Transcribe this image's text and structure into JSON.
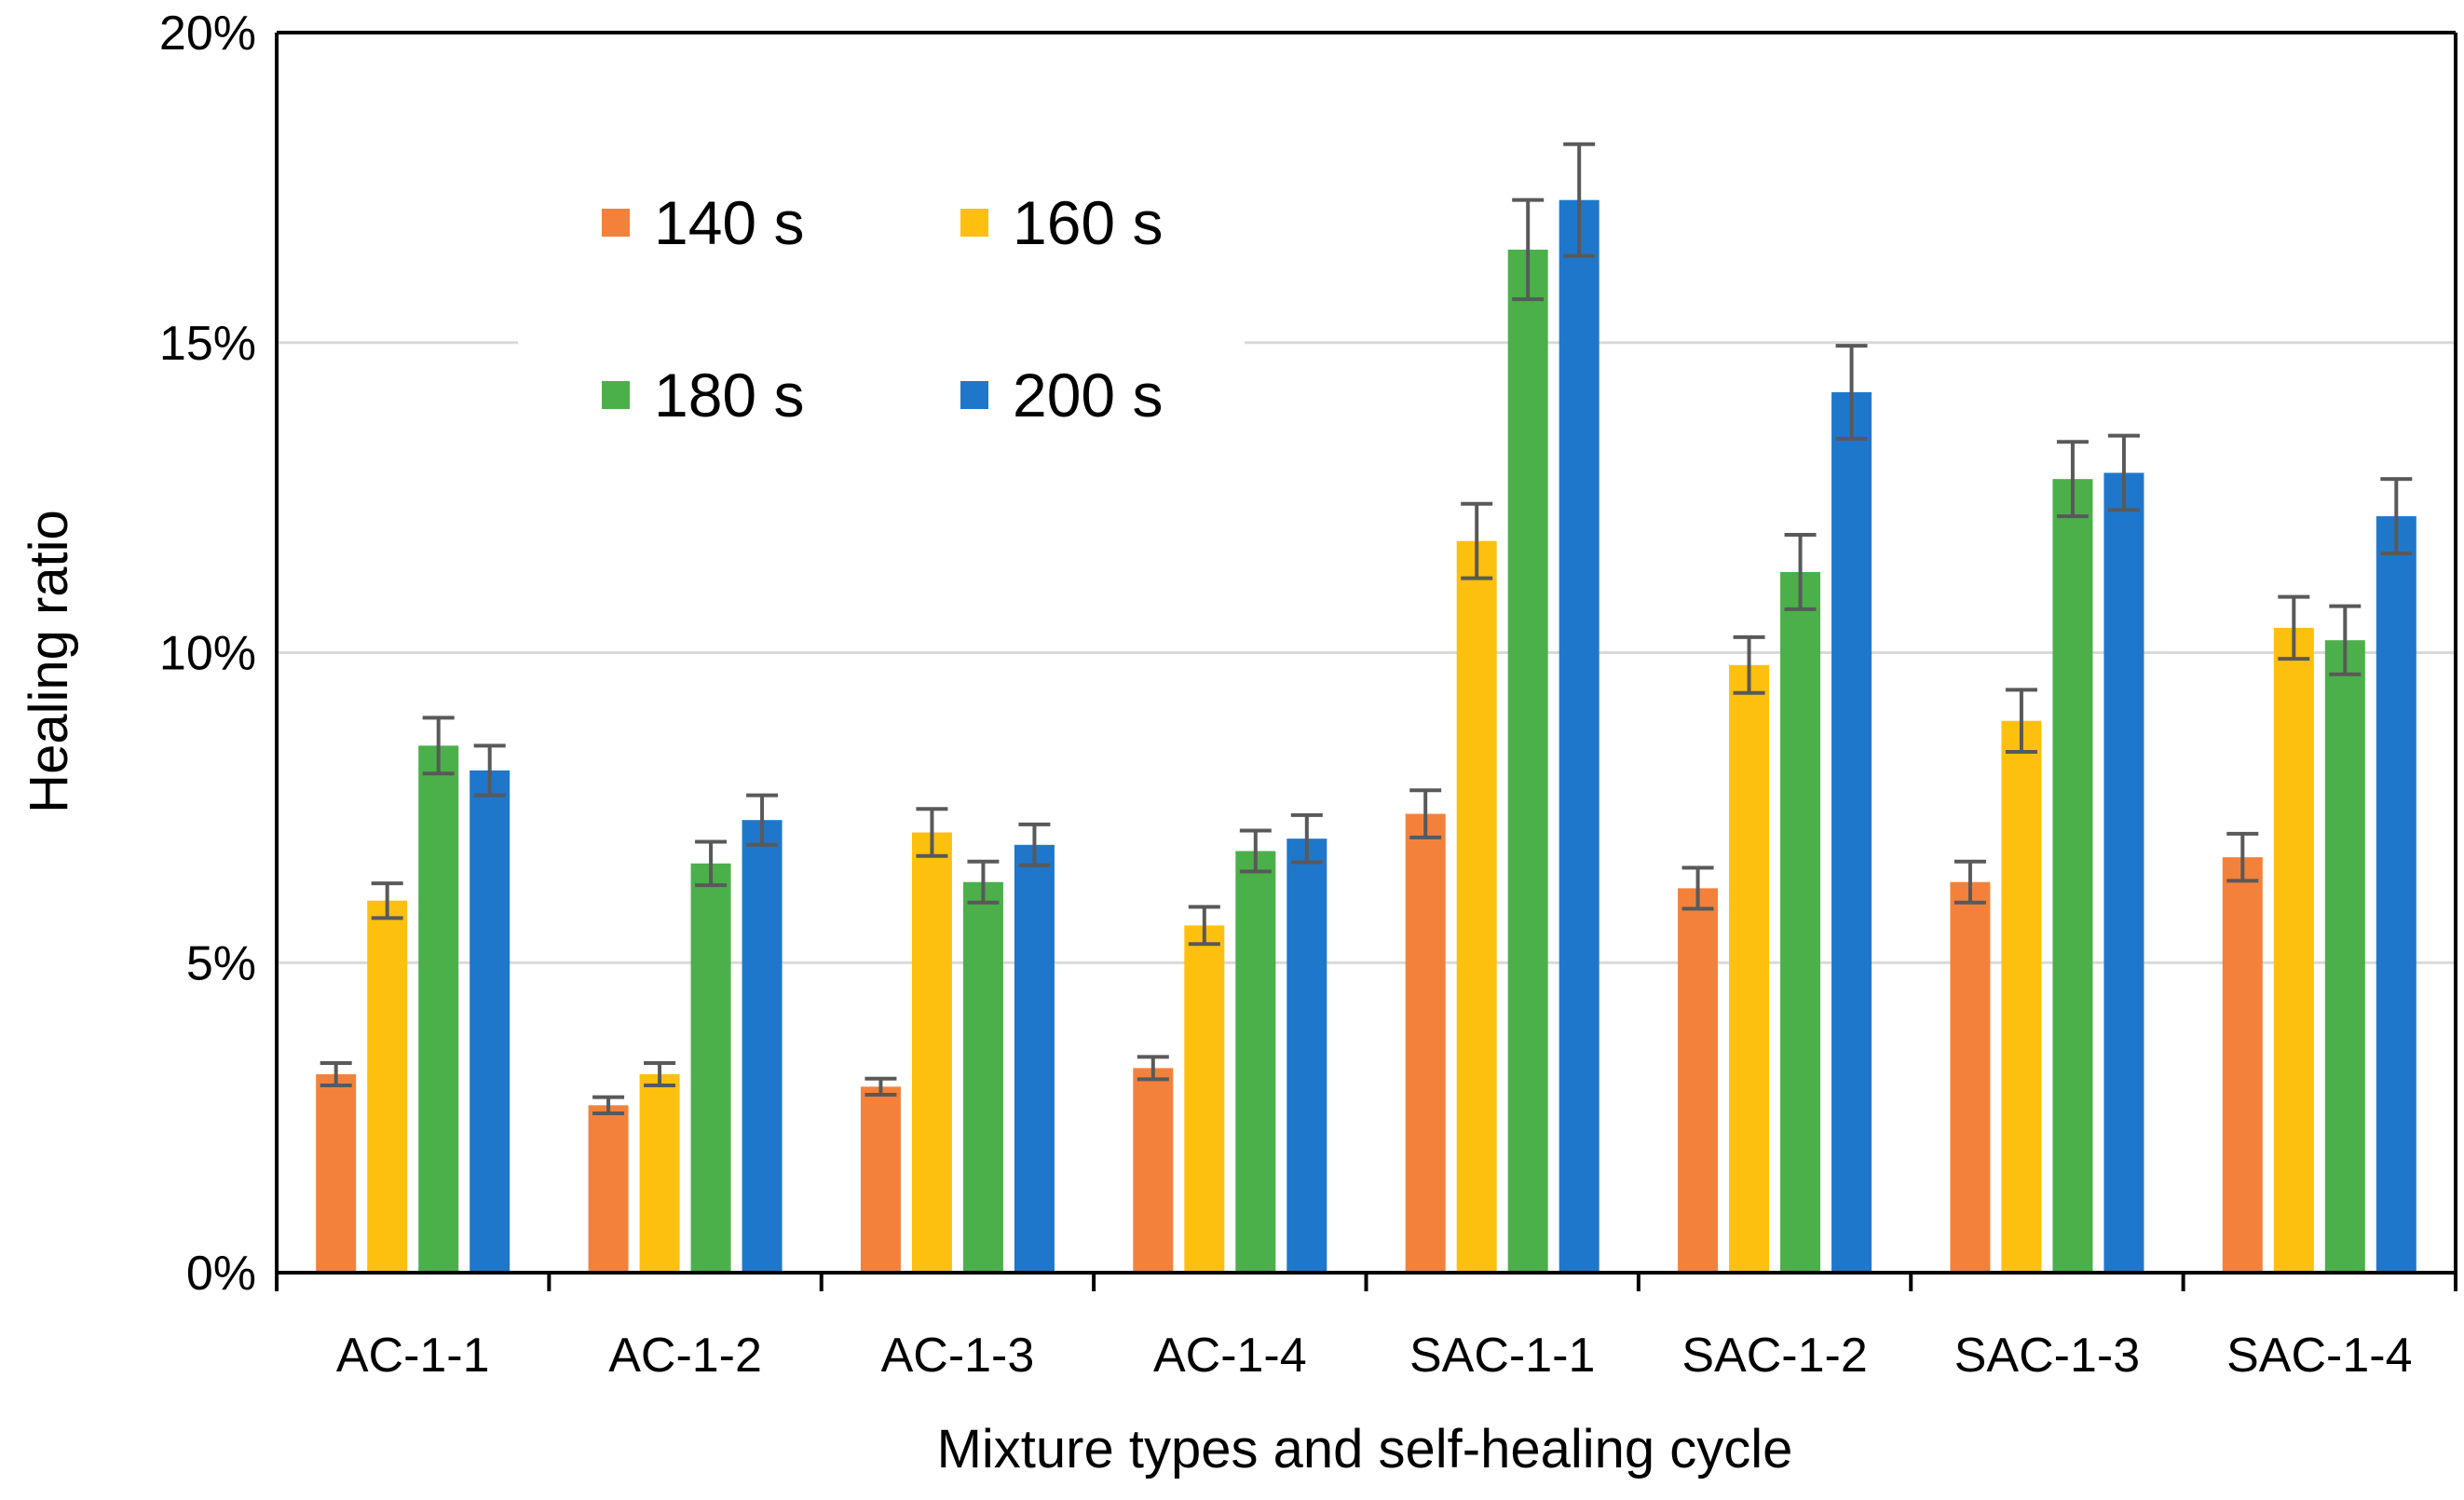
{
  "chart_data": {
    "type": "bar",
    "title": "",
    "xlabel": "Mixture types and self-healing cycle",
    "ylabel": "Healing ratio",
    "ylim": [
      0,
      20
    ],
    "yticks": [
      0,
      5,
      10,
      15,
      20
    ],
    "ytick_labels": [
      "0%",
      "5%",
      "10%",
      "15%",
      "20%"
    ],
    "grid": true,
    "legend_position": "top-left",
    "categories": [
      "AC-1-1",
      "AC-1-2",
      "AC-1-3",
      "AC-1-4",
      "SAC-1-1",
      "SAC-1-2",
      "SAC-1-3",
      "SAC-1-4"
    ],
    "series": [
      {
        "name": "140 s",
        "color": "#f4813b",
        "values": [
          3.2,
          2.7,
          3.0,
          3.3,
          7.4,
          6.2,
          6.3,
          6.7
        ],
        "errors": [
          0.18,
          0.13,
          0.13,
          0.18,
          0.38,
          0.33,
          0.33,
          0.38
        ]
      },
      {
        "name": "160 s",
        "color": "#fec00e",
        "values": [
          6.0,
          3.2,
          7.1,
          5.6,
          11.8,
          9.8,
          8.9,
          10.4
        ],
        "errors": [
          0.28,
          0.18,
          0.38,
          0.3,
          0.6,
          0.45,
          0.5,
          0.5
        ]
      },
      {
        "name": "180 s",
        "color": "#4bb04a",
        "values": [
          8.5,
          6.6,
          6.3,
          6.8,
          16.5,
          11.3,
          12.8,
          10.2
        ],
        "errors": [
          0.45,
          0.35,
          0.33,
          0.33,
          0.8,
          0.6,
          0.6,
          0.55
        ]
      },
      {
        "name": "200 s",
        "color": "#1f77cc",
        "values": [
          8.1,
          7.3,
          6.9,
          7.0,
          17.3,
          14.2,
          12.9,
          12.2
        ],
        "errors": [
          0.4,
          0.4,
          0.33,
          0.38,
          0.9,
          0.75,
          0.6,
          0.6
        ]
      }
    ]
  }
}
